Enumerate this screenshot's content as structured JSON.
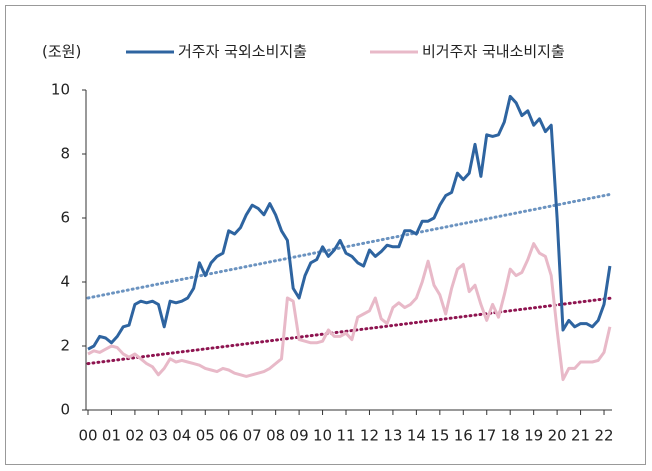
{
  "chart_data": {
    "type": "line",
    "y_unit": "(조원)",
    "x": [
      0,
      0.25,
      0.5,
      0.75,
      1,
      1.25,
      1.5,
      1.75,
      2,
      2.25,
      2.5,
      2.75,
      3,
      3.25,
      3.5,
      3.75,
      4,
      4.25,
      4.5,
      4.75,
      5,
      5.25,
      5.5,
      5.75,
      6,
      6.25,
      6.5,
      6.75,
      7,
      7.25,
      7.5,
      7.75,
      8,
      8.25,
      8.5,
      8.75,
      9,
      9.25,
      9.5,
      9.75,
      10,
      10.25,
      10.5,
      10.75,
      11,
      11.25,
      11.5,
      11.75,
      12,
      12.25,
      12.5,
      12.75,
      13,
      13.25,
      13.5,
      13.75,
      14,
      14.25,
      14.5,
      14.75,
      15,
      15.25,
      15.5,
      15.75,
      16,
      16.25,
      16.5,
      16.75,
      17,
      17.25,
      17.5,
      17.75,
      18,
      18.25,
      18.5,
      18.75,
      19,
      19.25,
      19.5,
      19.75,
      20,
      20.25,
      20.5,
      20.75,
      21,
      21.25,
      21.5,
      21.75,
      22,
      22.25
    ],
    "series": [
      {
        "name": "거주자 국외소비지출",
        "color": "#2e64a0",
        "values": [
          1.9,
          2.0,
          2.3,
          2.25,
          2.1,
          2.3,
          2.6,
          2.65,
          3.3,
          3.4,
          3.35,
          3.4,
          3.3,
          2.6,
          3.4,
          3.35,
          3.4,
          3.5,
          3.8,
          4.6,
          4.2,
          4.6,
          4.8,
          4.9,
          5.6,
          5.5,
          5.7,
          6.1,
          6.4,
          6.3,
          6.1,
          6.45,
          6.1,
          5.6,
          5.3,
          3.8,
          3.5,
          4.2,
          4.6,
          4.7,
          5.1,
          4.8,
          5.0,
          5.3,
          4.9,
          4.8,
          4.6,
          4.5,
          5.0,
          4.8,
          4.95,
          5.15,
          5.1,
          5.1,
          5.6,
          5.6,
          5.5,
          5.9,
          5.9,
          6.0,
          6.4,
          6.7,
          6.8,
          7.4,
          7.2,
          7.4,
          8.3,
          7.3,
          8.6,
          8.55,
          8.6,
          9.0,
          9.8,
          9.6,
          9.2,
          9.35,
          8.9,
          9.1,
          8.7,
          8.9,
          6.0,
          2.5,
          2.8,
          2.6,
          2.7,
          2.7,
          2.6,
          2.8,
          3.3,
          4.5
        ]
      },
      {
        "name": "비거주자 국내소비지출",
        "color": "#e8b9c8",
        "values": [
          1.75,
          1.85,
          1.8,
          1.9,
          2.0,
          1.95,
          1.75,
          1.65,
          1.75,
          1.6,
          1.45,
          1.35,
          1.1,
          1.3,
          1.6,
          1.5,
          1.55,
          1.5,
          1.45,
          1.4,
          1.3,
          1.25,
          1.2,
          1.3,
          1.25,
          1.15,
          1.1,
          1.05,
          1.1,
          1.15,
          1.2,
          1.3,
          1.45,
          1.6,
          3.5,
          3.4,
          2.2,
          2.15,
          2.1,
          2.1,
          2.15,
          2.5,
          2.3,
          2.3,
          2.4,
          2.2,
          2.9,
          3.0,
          3.1,
          3.5,
          2.85,
          2.7,
          3.2,
          3.35,
          3.2,
          3.3,
          3.5,
          4.0,
          4.65,
          3.9,
          3.6,
          3.0,
          3.8,
          4.4,
          4.55,
          3.7,
          3.9,
          3.3,
          2.8,
          3.3,
          2.9,
          3.6,
          4.4,
          4.2,
          4.3,
          4.7,
          5.2,
          4.9,
          4.8,
          4.2,
          2.5,
          0.95,
          1.3,
          1.3,
          1.5,
          1.5,
          1.5,
          1.55,
          1.8,
          2.6
        ]
      }
    ],
    "trendlines": [
      {
        "color": "#6b93c0",
        "values": [
          3.5,
          6.75
        ]
      },
      {
        "color": "#8e1450",
        "values": [
          1.45,
          3.5
        ]
      }
    ],
    "xlim": [
      0,
      22.34
    ],
    "xticks": [
      {
        "value": 0,
        "label": "00"
      },
      {
        "value": 1,
        "label": "01"
      },
      {
        "value": 2,
        "label": "02"
      },
      {
        "value": 3,
        "label": "03"
      },
      {
        "value": 4,
        "label": "04"
      },
      {
        "value": 5,
        "label": "05"
      },
      {
        "value": 6,
        "label": "06"
      },
      {
        "value": 7,
        "label": "07"
      },
      {
        "value": 8,
        "label": "08"
      },
      {
        "value": 9,
        "label": "09"
      },
      {
        "value": 10,
        "label": "10"
      },
      {
        "value": 11,
        "label": "11"
      },
      {
        "value": 12,
        "label": "12"
      },
      {
        "value": 13,
        "label": "13"
      },
      {
        "value": 14,
        "label": "14"
      },
      {
        "value": 15,
        "label": "15"
      },
      {
        "value": 16,
        "label": "16"
      },
      {
        "value": 17,
        "label": "17"
      },
      {
        "value": 18,
        "label": "18"
      },
      {
        "value": 19,
        "label": "19"
      },
      {
        "value": 20,
        "label": "20"
      },
      {
        "value": 21,
        "label": "21"
      },
      {
        "value": 22,
        "label": "22"
      }
    ],
    "ylim": [
      0,
      10
    ],
    "yticks": [
      0,
      2,
      4,
      6,
      8,
      10
    ],
    "grid": false
  }
}
